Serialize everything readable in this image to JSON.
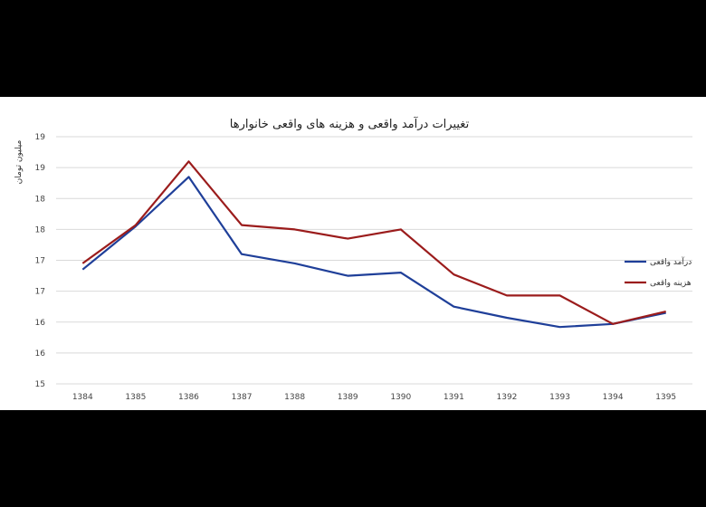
{
  "chart_data": {
    "type": "line",
    "title": "تغییرات درآمد واقعی و هزینه های واقعی خانوارها",
    "ylabel": "میلیون تومان",
    "xlabel": "",
    "categories": [
      "1384",
      "1385",
      "1386",
      "1387",
      "1388",
      "1389",
      "1390",
      "1391",
      "1392",
      "1393",
      "1394",
      "1395"
    ],
    "y_tick_labels": [
      "15",
      "16",
      "16",
      "17",
      "17",
      "18",
      "18",
      "19",
      "19"
    ],
    "ylim": [
      15,
      19
    ],
    "grid": true,
    "legend_position": "right",
    "series": [
      {
        "name": "درآمد واقعی",
        "color": "#1f3f99",
        "values": [
          16.85,
          17.55,
          18.35,
          17.1,
          16.95,
          16.75,
          16.8,
          16.25,
          16.07,
          15.92,
          15.97,
          16.15
        ]
      },
      {
        "name": "هزینه واقعی",
        "color": "#9b1c1c",
        "values": [
          16.95,
          17.57,
          18.6,
          17.57,
          17.5,
          17.35,
          17.5,
          16.77,
          16.43,
          16.43,
          15.97,
          16.17
        ]
      }
    ]
  }
}
